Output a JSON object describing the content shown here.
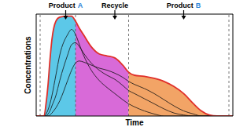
{
  "chart_data": {
    "type": "area",
    "x_label": "Time",
    "y_label": "Concentrations",
    "x": [
      0,
      2,
      4,
      5,
      6,
      7,
      8,
      10,
      12,
      16,
      18,
      20,
      22,
      24,
      28,
      32,
      36,
      40,
      44,
      47,
      50,
      55,
      60,
      65,
      70,
      75,
      80,
      84,
      88,
      92,
      96,
      100
    ],
    "series": [
      {
        "type": "area",
        "color": "#5cc8e8",
        "values": [
          null,
          null,
          0,
          0.12,
          0.3,
          0.55,
          0.75,
          0.93,
          0.97,
          0.98,
          0.98,
          0.93,
          null,
          null,
          null,
          null,
          null,
          null,
          null,
          null,
          null,
          null,
          null,
          null,
          null,
          null,
          null,
          null,
          null,
          null,
          null,
          null
        ]
      },
      {
        "type": "area",
        "color": "#d86ad8",
        "values": [
          null,
          null,
          null,
          null,
          null,
          null,
          null,
          null,
          null,
          null,
          null,
          0.93,
          0.86,
          0.8,
          0.68,
          0.61,
          0.59,
          0.57,
          0.5,
          0.43,
          null,
          null,
          null,
          null,
          null,
          null,
          null,
          null,
          null,
          null,
          null,
          null
        ]
      },
      {
        "type": "area",
        "color": "#f2a466",
        "values": [
          null,
          null,
          null,
          null,
          null,
          null,
          null,
          null,
          null,
          null,
          null,
          null,
          null,
          null,
          null,
          null,
          null,
          null,
          null,
          0.43,
          0.4,
          0.39,
          0.37,
          0.34,
          0.29,
          0.22,
          0.12,
          0.05,
          0.01,
          0,
          0,
          0
        ]
      },
      {
        "type": "line",
        "color": "#111111",
        "values": [
          0,
          0,
          0,
          0.02,
          0.06,
          0.12,
          0.2,
          0.4,
          0.6,
          0.8,
          0.85,
          0.8,
          0.7,
          0.6,
          0.45,
          0.35,
          0.28,
          0.22,
          0.16,
          0.12,
          0.09,
          0.05,
          0.02,
          0,
          0,
          0,
          0,
          0,
          0,
          0,
          0,
          0
        ]
      },
      {
        "type": "line",
        "color": "#111111",
        "values": [
          0,
          0,
          0,
          0,
          0.02,
          0.05,
          0.1,
          0.2,
          0.35,
          0.6,
          0.7,
          0.72,
          0.68,
          0.62,
          0.52,
          0.45,
          0.4,
          0.36,
          0.3,
          0.25,
          0.22,
          0.17,
          0.12,
          0.07,
          0.03,
          0.01,
          0,
          0,
          0,
          0,
          0,
          0
        ]
      },
      {
        "type": "line",
        "color": "#111111",
        "values": [
          0,
          0,
          0,
          0,
          0,
          0.01,
          0.03,
          0.08,
          0.15,
          0.35,
          0.45,
          0.52,
          0.54,
          0.53,
          0.5,
          0.47,
          0.45,
          0.42,
          0.38,
          0.34,
          0.31,
          0.27,
          0.22,
          0.16,
          0.1,
          0.05,
          0.02,
          0,
          0,
          0,
          0,
          0
        ]
      },
      {
        "type": "line",
        "color": "#e0302a",
        "values": [
          0,
          0,
          0,
          0.12,
          0.3,
          0.55,
          0.75,
          0.93,
          0.97,
          0.98,
          0.98,
          0.93,
          0.86,
          0.8,
          0.68,
          0.61,
          0.59,
          0.57,
          0.5,
          0.43,
          0.4,
          0.39,
          0.37,
          0.34,
          0.29,
          0.22,
          0.12,
          0.05,
          0.01,
          0,
          0,
          0
        ]
      }
    ],
    "xlim": [
      0,
      100
    ],
    "ylim": [
      0,
      1
    ],
    "tick_labels": false,
    "vlines": [
      2,
      20,
      47,
      98
    ],
    "annotations": [
      {
        "text": "Product",
        "tag": "A",
        "color": "#2a86d8",
        "x": 15
      },
      {
        "text": "Recycle",
        "x": 40
      },
      {
        "text": "Product",
        "tag": "B",
        "color": "#2a86d8",
        "x": 75
      }
    ]
  }
}
